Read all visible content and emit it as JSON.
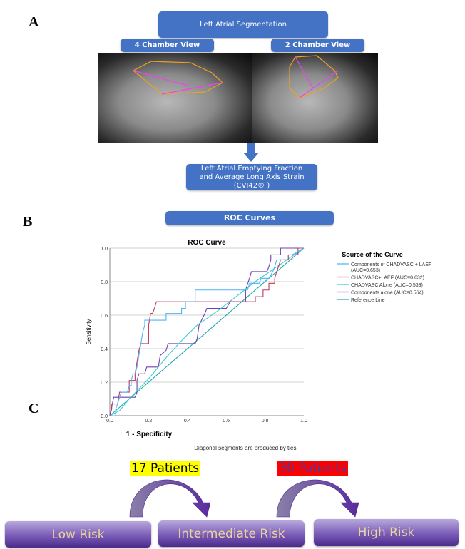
{
  "panels": {
    "a": "A",
    "b": "B",
    "c": "C"
  },
  "section_a": {
    "top_box": "Left Atrial Segmentation",
    "view_left": "4 Chamber View",
    "view_right": "2 Chamber View",
    "result_box_line1": "Left Atrial Emptying Fraction",
    "result_box_line2": "and Average Long Axis Strain",
    "result_box_line3": "(CVI42® )"
  },
  "section_b": {
    "header_box": "ROC Curves",
    "footnote": "Diagonal segments are produced by ties."
  },
  "chart_data": {
    "type": "line",
    "title": "ROC Curve",
    "xlabel": "1 - Specificity",
    "ylabel": "Sensitivity",
    "xlim": [
      0,
      1
    ],
    "ylim": [
      0,
      1
    ],
    "xticks": [
      "0.0",
      "0.2",
      "0.4",
      "0.6",
      "0.8",
      "1.0"
    ],
    "yticks": [
      "0.0",
      "0.2",
      "0.4",
      "0.6",
      "0.8",
      "1.0"
    ],
    "grid": "horizontal",
    "legend_title": "Source of the Curve",
    "legend_position": "right",
    "series": [
      {
        "name": "Components of CHADVASC + LAEF",
        "name2": "(AUC=0.653)",
        "color": "#4fb3f5",
        "points": [
          [
            0,
            0
          ],
          [
            0.03,
            0
          ],
          [
            0.03,
            0.04
          ],
          [
            0.04,
            0.07
          ],
          [
            0.05,
            0.11
          ],
          [
            0.06,
            0.14
          ],
          [
            0.09,
            0.14
          ],
          [
            0.1,
            0.18
          ],
          [
            0.11,
            0.18
          ],
          [
            0.11,
            0.21
          ],
          [
            0.12,
            0.25
          ],
          [
            0.13,
            0.25
          ],
          [
            0.14,
            0.29
          ],
          [
            0.15,
            0.36
          ],
          [
            0.16,
            0.43
          ],
          [
            0.17,
            0.5
          ],
          [
            0.18,
            0.54
          ],
          [
            0.18,
            0.57
          ],
          [
            0.29,
            0.57
          ],
          [
            0.29,
            0.61
          ],
          [
            0.37,
            0.61
          ],
          [
            0.37,
            0.64
          ],
          [
            0.39,
            0.64
          ],
          [
            0.39,
            0.68
          ],
          [
            0.44,
            0.68
          ],
          [
            0.44,
            0.75
          ],
          [
            0.71,
            0.75
          ],
          [
            0.72,
            0.79
          ],
          [
            0.77,
            0.79
          ],
          [
            0.78,
            0.82
          ],
          [
            0.82,
            0.82
          ],
          [
            0.84,
            0.86
          ],
          [
            0.85,
            0.89
          ],
          [
            0.86,
            0.93
          ],
          [
            0.94,
            0.93
          ],
          [
            0.94,
            0.96
          ],
          [
            1,
            1
          ]
        ]
      },
      {
        "name": "CHADVASC+LAEF (AUC=0.632)",
        "color": "#c0395a",
        "points": [
          [
            0,
            0
          ],
          [
            0.01,
            0.04
          ],
          [
            0.01,
            0.07
          ],
          [
            0.04,
            0.07
          ],
          [
            0.05,
            0.14
          ],
          [
            0.1,
            0.14
          ],
          [
            0.1,
            0.21
          ],
          [
            0.13,
            0.21
          ],
          [
            0.13,
            0.25
          ],
          [
            0.14,
            0.32
          ],
          [
            0.15,
            0.39
          ],
          [
            0.16,
            0.43
          ],
          [
            0.2,
            0.43
          ],
          [
            0.2,
            0.46
          ],
          [
            0.2,
            0.54
          ],
          [
            0.21,
            0.61
          ],
          [
            0.22,
            0.61
          ],
          [
            0.23,
            0.64
          ],
          [
            0.24,
            0.68
          ],
          [
            0.75,
            0.68
          ],
          [
            0.75,
            0.71
          ],
          [
            0.79,
            0.71
          ],
          [
            0.79,
            0.75
          ],
          [
            0.82,
            0.75
          ],
          [
            0.82,
            0.79
          ],
          [
            0.85,
            0.79
          ],
          [
            0.85,
            0.82
          ],
          [
            0.86,
            0.86
          ],
          [
            0.87,
            0.89
          ],
          [
            0.88,
            0.93
          ],
          [
            0.92,
            0.93
          ],
          [
            0.92,
            0.96
          ],
          [
            0.97,
            0.96
          ],
          [
            0.97,
            1
          ],
          [
            1,
            1
          ]
        ]
      },
      {
        "name": "CHADVASC Alone (AUC=0.539)",
        "color": "#36cfd0",
        "points": [
          [
            0,
            0
          ],
          [
            0.05,
            0.03
          ],
          [
            0.1,
            0.1
          ],
          [
            0.2,
            0.22
          ],
          [
            0.3,
            0.36
          ],
          [
            0.38,
            0.46
          ],
          [
            0.45,
            0.54
          ],
          [
            0.55,
            0.62
          ],
          [
            0.65,
            0.71
          ],
          [
            0.75,
            0.8
          ],
          [
            0.85,
            0.88
          ],
          [
            0.95,
            0.96
          ],
          [
            1,
            1
          ]
        ]
      },
      {
        "name": "Components alone (AUC=0.564)",
        "color": "#7040b0",
        "points": [
          [
            0,
            0
          ],
          [
            0.02,
            0.11
          ],
          [
            0.13,
            0.11
          ],
          [
            0.14,
            0.14
          ],
          [
            0.14,
            0.21
          ],
          [
            0.15,
            0.25
          ],
          [
            0.18,
            0.25
          ],
          [
            0.19,
            0.29
          ],
          [
            0.25,
            0.29
          ],
          [
            0.26,
            0.36
          ],
          [
            0.29,
            0.39
          ],
          [
            0.3,
            0.43
          ],
          [
            0.44,
            0.43
          ],
          [
            0.45,
            0.46
          ],
          [
            0.46,
            0.54
          ],
          [
            0.49,
            0.61
          ],
          [
            0.5,
            0.64
          ],
          [
            0.6,
            0.64
          ],
          [
            0.62,
            0.68
          ],
          [
            0.7,
            0.68
          ],
          [
            0.7,
            0.75
          ],
          [
            0.72,
            0.82
          ],
          [
            0.73,
            0.86
          ],
          [
            0.81,
            0.86
          ],
          [
            0.82,
            0.89
          ],
          [
            0.83,
            0.93
          ],
          [
            0.83,
            0.96
          ],
          [
            0.88,
            0.96
          ],
          [
            0.88,
            1
          ],
          [
            1,
            1
          ]
        ]
      },
      {
        "name": "Reference Line",
        "color": "#20a8b0",
        "points": [
          [
            0,
            0
          ],
          [
            1,
            1
          ]
        ]
      }
    ]
  },
  "section_c": {
    "transition_1": "17 Patients",
    "transition_1_color": "#ffff00",
    "transition_2": "30 Patients",
    "transition_2_color": "#ff0000",
    "risk_low": "Low Risk",
    "risk_intermediate": "Intermediate Risk",
    "risk_high": "High Risk"
  }
}
